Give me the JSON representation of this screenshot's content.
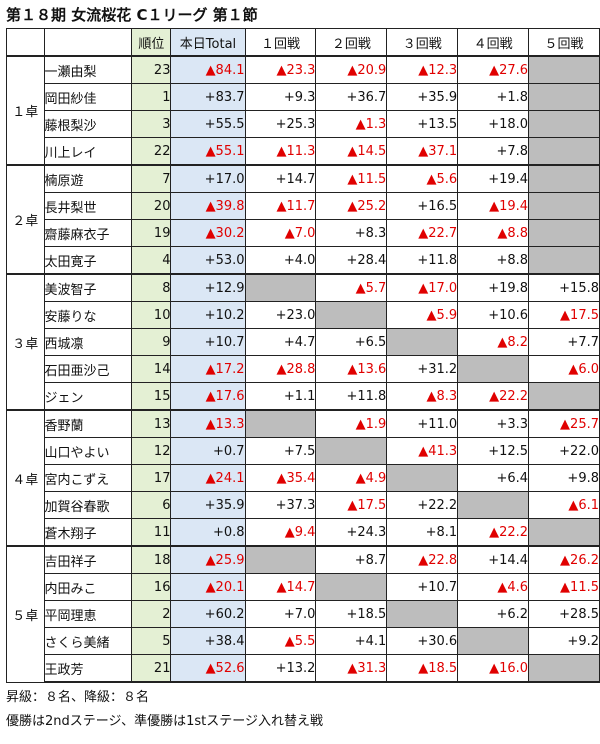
{
  "title": "第１８期 女流桜花 C１リーグ 第１節",
  "headers": {
    "blank1": "",
    "blank2": "",
    "rank": "順位",
    "total": "本日Total",
    "games": [
      "１回戦",
      "２回戦",
      "３回戦",
      "４回戦",
      "５回戦"
    ]
  },
  "groups": [
    {
      "label": "１卓",
      "players": [
        {
          "name": "一瀬由梨",
          "rank": "23",
          "total": "▲84.1",
          "games": [
            "▲23.3",
            "▲20.9",
            "▲12.3",
            "▲27.6",
            null
          ]
        },
        {
          "name": "岡田紗佳",
          "rank": "1",
          "total": "+83.7",
          "games": [
            "+9.3",
            "+36.7",
            "+35.9",
            "+1.8",
            null
          ]
        },
        {
          "name": "藤根梨沙",
          "rank": "3",
          "total": "+55.5",
          "games": [
            "+25.3",
            "▲1.3",
            "+13.5",
            "+18.0",
            null
          ]
        },
        {
          "name": "川上レイ",
          "rank": "22",
          "total": "▲55.1",
          "games": [
            "▲11.3",
            "▲14.5",
            "▲37.1",
            "+7.8",
            null
          ]
        }
      ]
    },
    {
      "label": "２卓",
      "players": [
        {
          "name": "楠原遊",
          "rank": "7",
          "total": "+17.0",
          "games": [
            "+14.7",
            "▲11.5",
            "▲5.6",
            "+19.4",
            null
          ]
        },
        {
          "name": "長井梨世",
          "rank": "20",
          "total": "▲39.8",
          "games": [
            "▲11.7",
            "▲25.2",
            "+16.5",
            "▲19.4",
            null
          ]
        },
        {
          "name": "齋藤麻衣子",
          "rank": "19",
          "total": "▲30.2",
          "games": [
            "▲7.0",
            "+8.3",
            "▲22.7",
            "▲8.8",
            null
          ]
        },
        {
          "name": "太田寛子",
          "rank": "4",
          "total": "+53.0",
          "games": [
            "+4.0",
            "+28.4",
            "+11.8",
            "+8.8",
            null
          ]
        }
      ]
    },
    {
      "label": "３卓",
      "players": [
        {
          "name": "美波智子",
          "rank": "8",
          "total": "+12.9",
          "games": [
            null,
            "▲5.7",
            "▲17.0",
            "+19.8",
            "+15.8"
          ]
        },
        {
          "name": "安藤りな",
          "rank": "10",
          "total": "+10.2",
          "games": [
            "+23.0",
            null,
            "▲5.9",
            "+10.6",
            "▲17.5"
          ]
        },
        {
          "name": "西城凛",
          "rank": "9",
          "total": "+10.7",
          "games": [
            "+4.7",
            "+6.5",
            null,
            "▲8.2",
            "+7.7"
          ]
        },
        {
          "name": "石田亜沙己",
          "rank": "14",
          "total": "▲17.2",
          "games": [
            "▲28.8",
            "▲13.6",
            "+31.2",
            null,
            "▲6.0"
          ]
        },
        {
          "name": "ジェン",
          "rank": "15",
          "total": "▲17.6",
          "games": [
            "+1.1",
            "+11.8",
            "▲8.3",
            "▲22.2",
            null
          ]
        }
      ]
    },
    {
      "label": "４卓",
      "players": [
        {
          "name": "香野蘭",
          "rank": "13",
          "total": "▲13.3",
          "games": [
            null,
            "▲1.9",
            "+11.0",
            "+3.3",
            "▲25.7"
          ]
        },
        {
          "name": "山口やよい",
          "rank": "12",
          "total": "+0.7",
          "games": [
            "+7.5",
            null,
            "▲41.3",
            "+12.5",
            "+22.0"
          ]
        },
        {
          "name": "宮内こずえ",
          "rank": "17",
          "total": "▲24.1",
          "games": [
            "▲35.4",
            "▲4.9",
            null,
            "+6.4",
            "+9.8"
          ]
        },
        {
          "name": "加賀谷春歌",
          "rank": "6",
          "total": "+35.9",
          "games": [
            "+37.3",
            "▲17.5",
            "+22.2",
            null,
            "▲6.1"
          ]
        },
        {
          "name": "蒼木翔子",
          "rank": "11",
          "total": "+0.8",
          "games": [
            "▲9.4",
            "+24.3",
            "+8.1",
            "▲22.2",
            null
          ]
        }
      ]
    },
    {
      "label": "５卓",
      "players": [
        {
          "name": "吉田祥子",
          "rank": "18",
          "total": "▲25.9",
          "games": [
            null,
            "+8.7",
            "▲22.8",
            "+14.4",
            "▲26.2"
          ]
        },
        {
          "name": "内田みこ",
          "rank": "16",
          "total": "▲20.1",
          "games": [
            "▲14.7",
            null,
            "+10.7",
            "▲4.6",
            "▲11.5"
          ]
        },
        {
          "name": "平岡理恵",
          "rank": "2",
          "total": "+60.2",
          "games": [
            "+7.0",
            "+18.5",
            null,
            "+6.2",
            "+28.5"
          ]
        },
        {
          "name": "さくら美緒",
          "rank": "5",
          "total": "+38.4",
          "games": [
            "▲5.5",
            "+4.1",
            "+30.6",
            null,
            "+9.2"
          ]
        },
        {
          "name": "王政芳",
          "rank": "21",
          "total": "▲52.6",
          "games": [
            "+13.2",
            "▲31.3",
            "▲18.5",
            "▲16.0",
            null
          ]
        }
      ]
    }
  ],
  "footer": {
    "line1": "昇級：８名、降級：８名",
    "line2": "優勝は2ndステージ、準優勝は1stステージ入れ替え戦"
  },
  "colors": {
    "negative": "#e00000",
    "rank_bg": "#e4f0d4",
    "total_bg": "#dbe7f5",
    "blank_cell": "#bdbdbd"
  }
}
